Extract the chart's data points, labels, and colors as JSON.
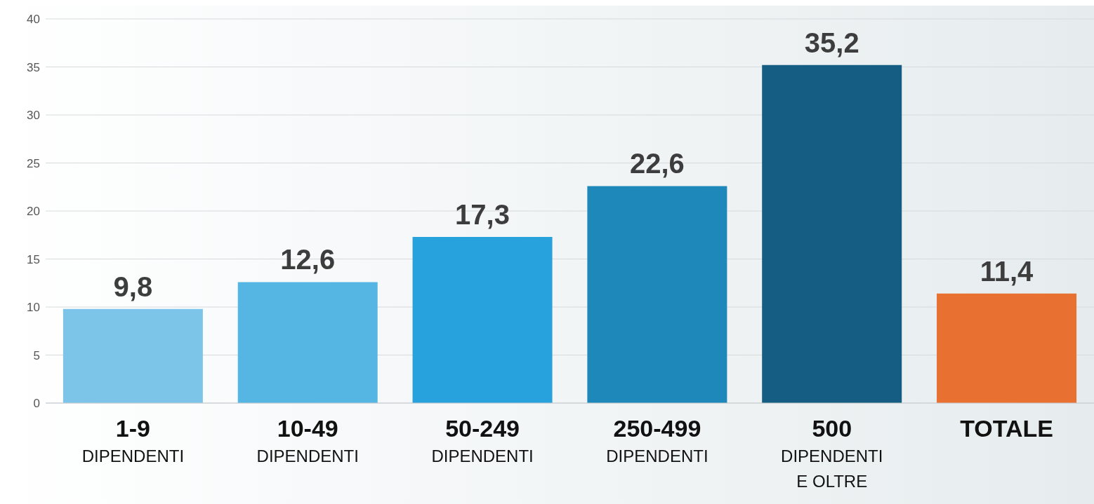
{
  "chart_data": {
    "type": "bar",
    "categories": [
      "1-9\nDIPENDENTI",
      "10-49\nDIPENDENTI",
      "50-249\nDIPENDENTI",
      "250-499\nDIPENDENTI",
      "500\nDIPENDENTI\nE OLTRE",
      "TOTALE"
    ],
    "values": [
      9.8,
      12.6,
      17.3,
      22.6,
      35.2,
      11.4
    ],
    "colors": [
      "#7cc5e9",
      "#55b5e3",
      "#27a2dc",
      "#1f88ba",
      "#155d82",
      "#e87031"
    ],
    "value_labels": [
      "9,8",
      "12,6",
      "17,3",
      "22,6",
      "35,2",
      "11,4"
    ],
    "ylim": [
      0,
      40
    ],
    "yticks": [
      0,
      5,
      10,
      15,
      20,
      25,
      30,
      35,
      40
    ],
    "grid": "y",
    "legend": false
  }
}
